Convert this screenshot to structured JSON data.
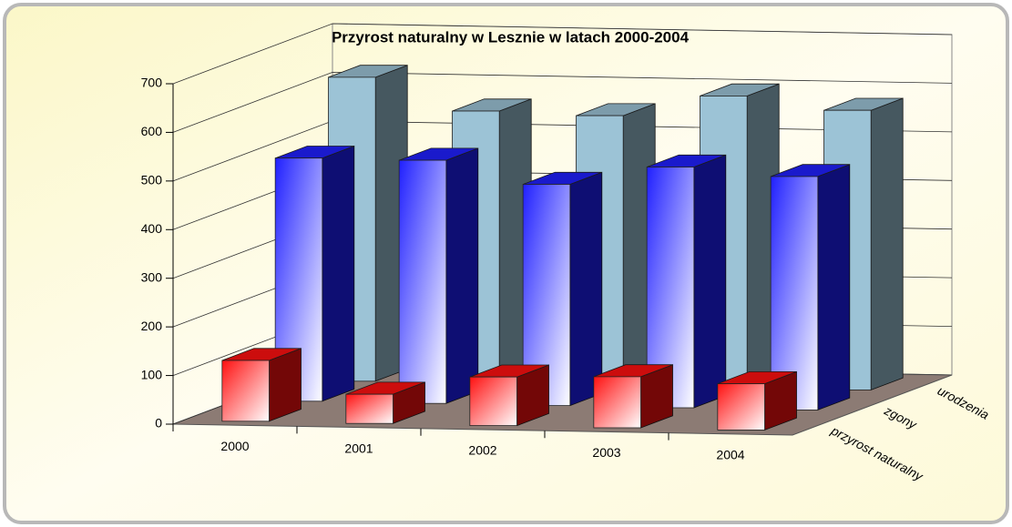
{
  "chart_data": {
    "type": "bar3d",
    "title": "Przyrost naturalny w Lesznie w latach 2000-2004",
    "categories": [
      "2000",
      "2001",
      "2002",
      "2003",
      "2004"
    ],
    "series": [
      {
        "name": "urodzenia",
        "color": "#9cc3d6",
        "values": [
          625,
          560,
          555,
          600,
          575
        ]
      },
      {
        "name": "zgony",
        "color": "#2020ff",
        "values": [
          500,
          500,
          455,
          495,
          480
        ]
      },
      {
        "name": "przyrost naturalny",
        "color": "#ff1010",
        "values": [
          125,
          60,
          100,
          105,
          95
        ]
      }
    ],
    "ylim": [
      0,
      700
    ],
    "yticks": [
      0,
      100,
      200,
      300,
      400,
      500,
      600,
      700
    ],
    "grid": true
  }
}
